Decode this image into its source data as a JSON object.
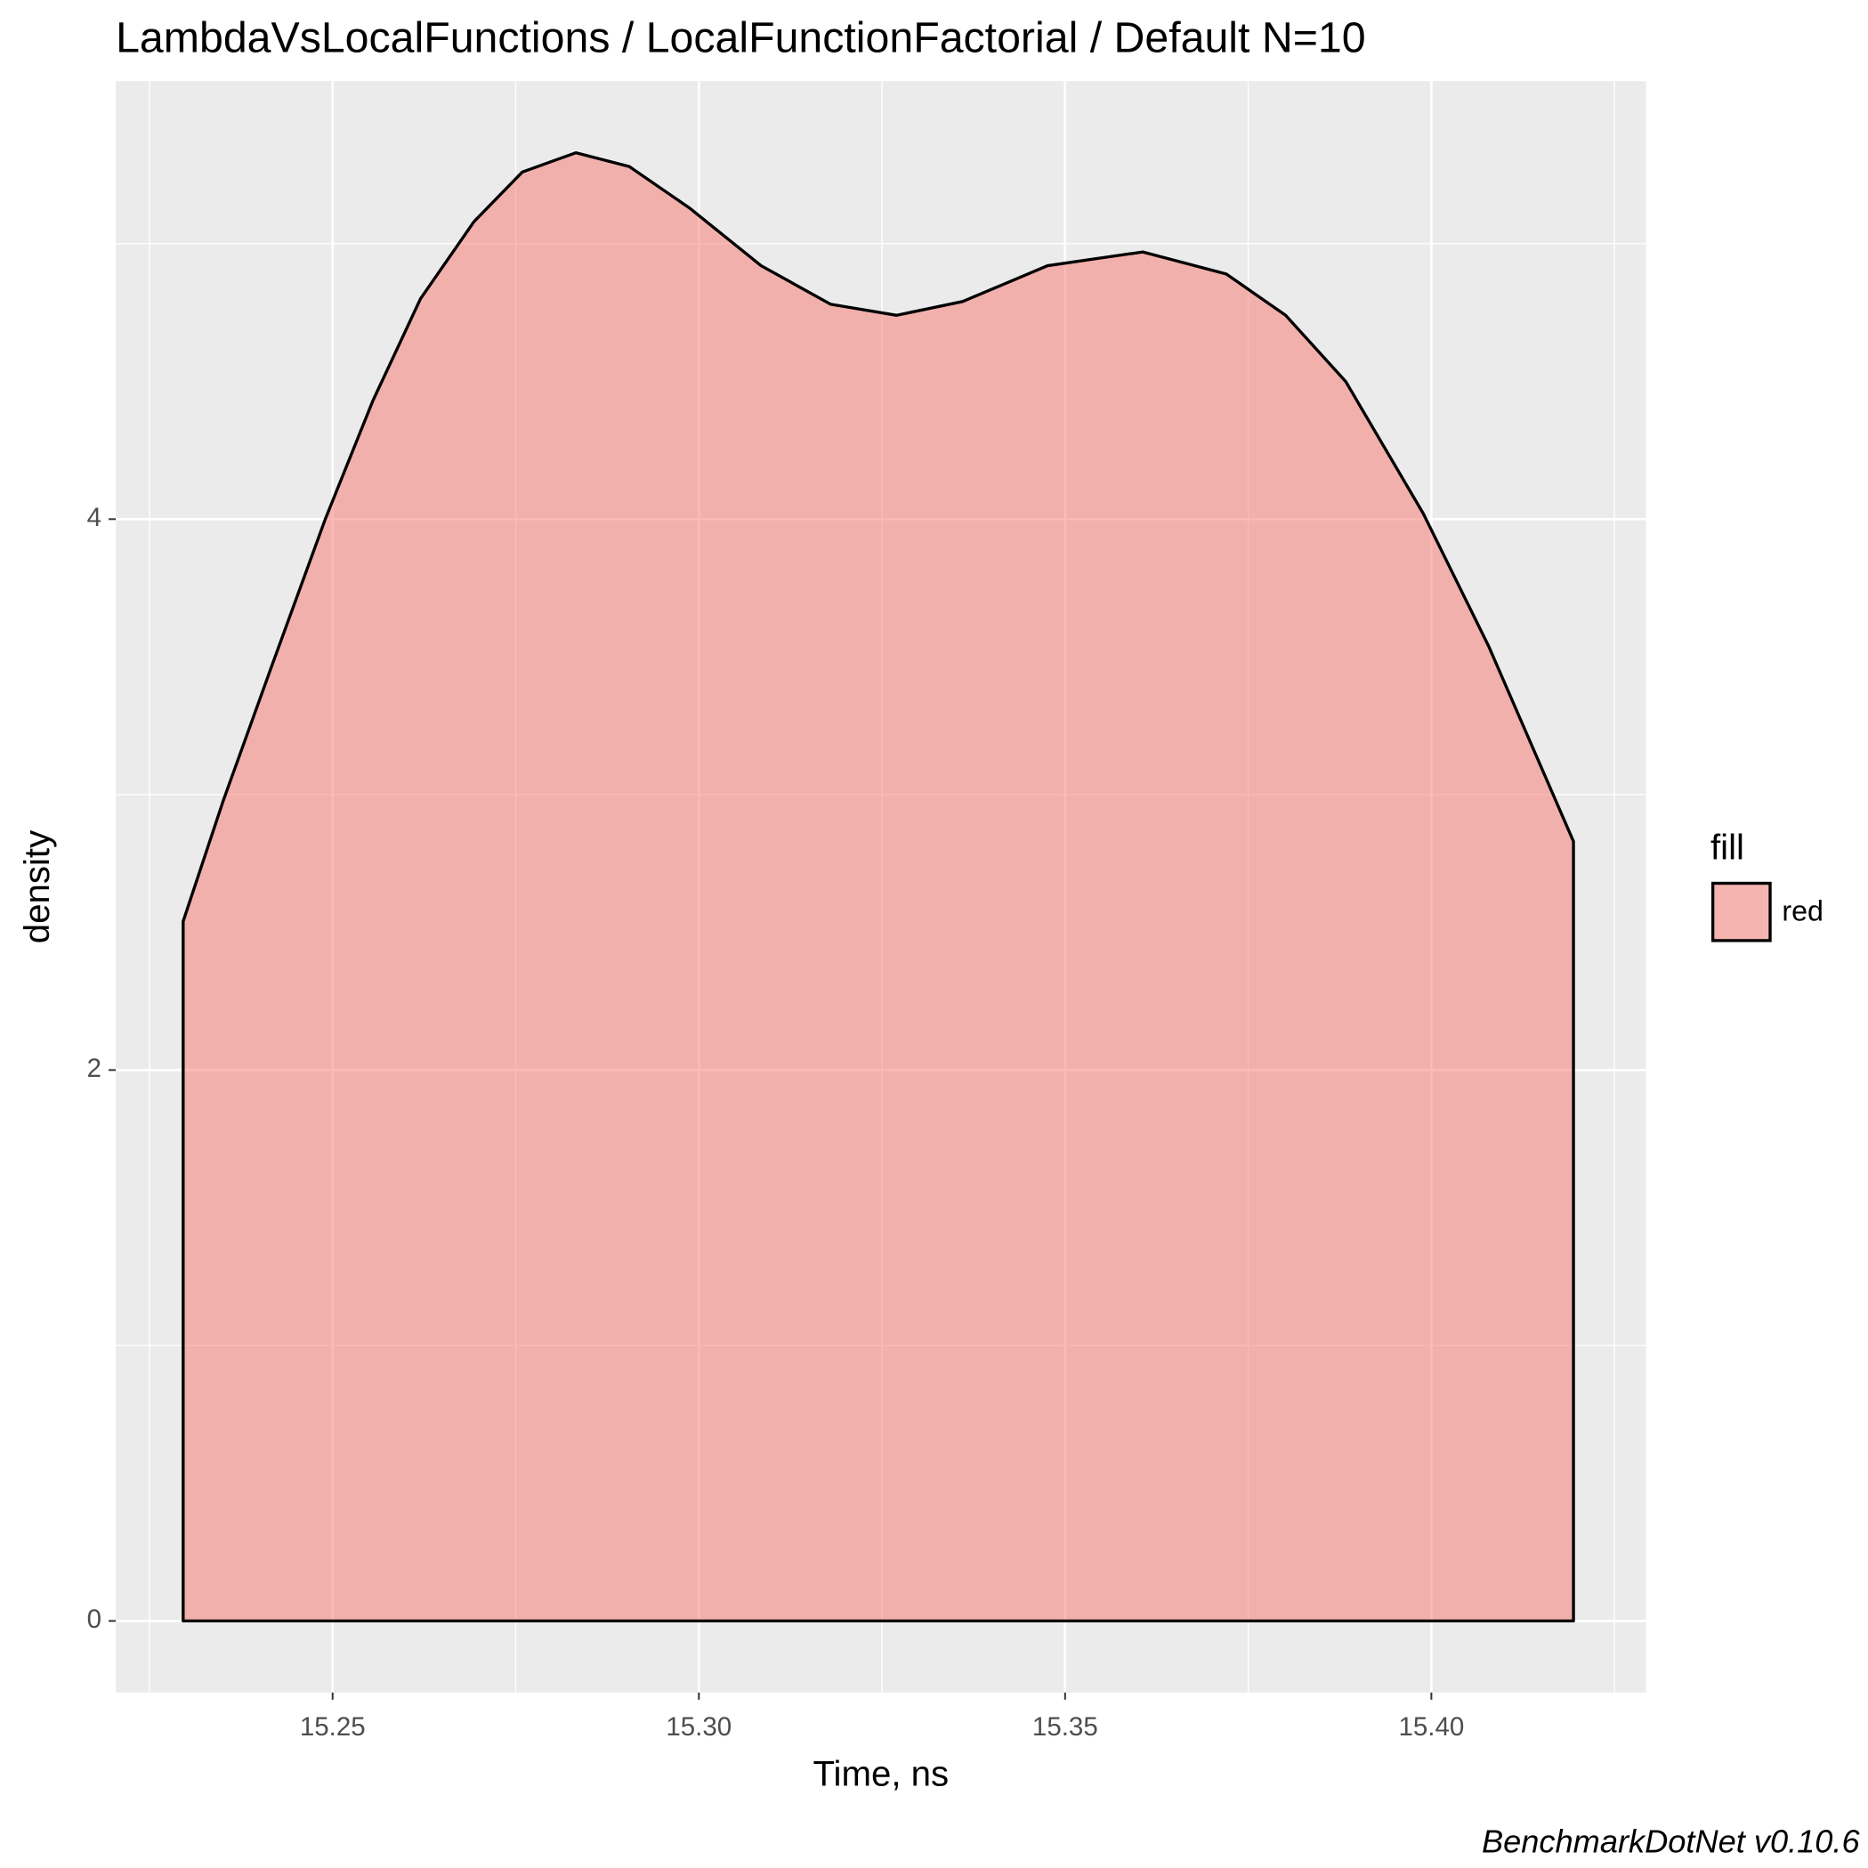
{
  "chart_data": {
    "type": "area",
    "title": "LambdaVsLocalFunctions / LocalFunctionFactorial / Default N=10",
    "x_label": "Time, ns",
    "y_label": "density",
    "caption": "BenchmarkDotNet v0.10.6",
    "legend_title": "fill",
    "legend": "right",
    "grid": true,
    "x": [
      15.2296,
      15.2351,
      15.2416,
      15.249,
      15.2555,
      15.262,
      15.2693,
      15.2759,
      15.2832,
      15.2905,
      15.2987,
      15.3085,
      15.318,
      15.327,
      15.336,
      15.3476,
      15.3606,
      15.372,
      15.3801,
      15.3883,
      15.3989,
      15.4078,
      15.4194
    ],
    "series": [
      {
        "name": "red",
        "color": "#F8766D",
        "values": [
          2.54,
          2.98,
          3.46,
          4.0,
          4.43,
          4.8,
          5.08,
          5.26,
          5.33,
          5.28,
          5.13,
          4.92,
          4.78,
          4.74,
          4.79,
          4.92,
          4.97,
          4.89,
          4.74,
          4.5,
          4.02,
          3.54,
          2.83
        ]
      }
    ],
    "xlim": [
      15.2204,
      15.4293
    ],
    "xticks": [
      15.25,
      {
        "value": 15.3,
        "label": "15.30"
      },
      15.35,
      {
        "value": 15.4,
        "label": "15.40"
      }
    ],
    "ylim": [
      -0.26,
      5.59
    ],
    "yticks": [
      0,
      2,
      4
    ]
  }
}
